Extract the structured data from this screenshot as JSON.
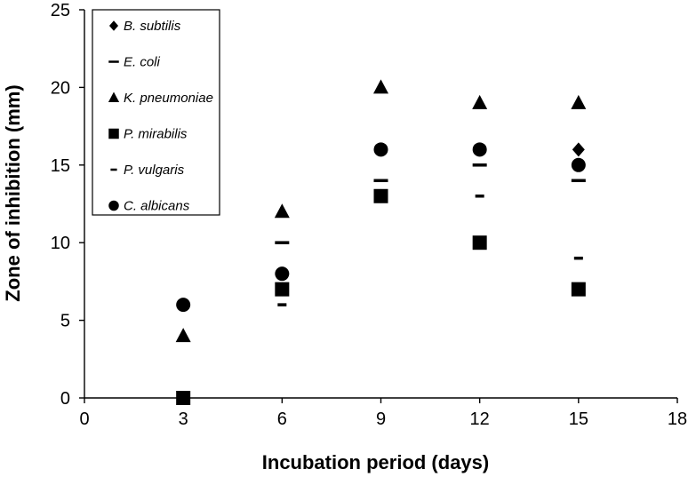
{
  "chart_data": {
    "type": "scatter",
    "xlabel": "Incubation period (days)",
    "ylabel": "Zone of inhibition (mm)",
    "xlim": [
      0,
      18
    ],
    "ylim": [
      0,
      25
    ],
    "xticks": [
      0,
      3,
      6,
      9,
      12,
      15,
      18
    ],
    "yticks": [
      0,
      5,
      10,
      15,
      20,
      25
    ],
    "grid": false,
    "legend_position": "top-left",
    "colors": {
      "marks": "#000000",
      "axes": "#000000",
      "background": "#ffffff"
    },
    "series": [
      {
        "name": "B. subtilis",
        "marker": "diamond",
        "x": [
          3,
          6,
          9,
          12,
          15
        ],
        "y": [
          0,
          7,
          13,
          16,
          16
        ]
      },
      {
        "name": "E. coli",
        "marker": "long-dash",
        "x": [
          6,
          9,
          12,
          15
        ],
        "y": [
          10,
          14,
          15,
          14
        ]
      },
      {
        "name": "K. pneumoniae",
        "marker": "triangle",
        "x": [
          3,
          6,
          9,
          12,
          15
        ],
        "y": [
          4,
          12,
          20,
          19,
          19
        ]
      },
      {
        "name": "P. mirabilis",
        "marker": "square",
        "x": [
          3,
          6,
          9,
          12,
          15
        ],
        "y": [
          0,
          7,
          13,
          10,
          7
        ]
      },
      {
        "name": "P. vulgaris",
        "marker": "short-dash",
        "x": [
          6,
          12,
          15
        ],
        "y": [
          6,
          13,
          9
        ]
      },
      {
        "name": "C. albicans",
        "marker": "circle",
        "x": [
          3,
          6,
          9,
          12,
          15
        ],
        "y": [
          6,
          8,
          16,
          16,
          15
        ]
      }
    ]
  }
}
